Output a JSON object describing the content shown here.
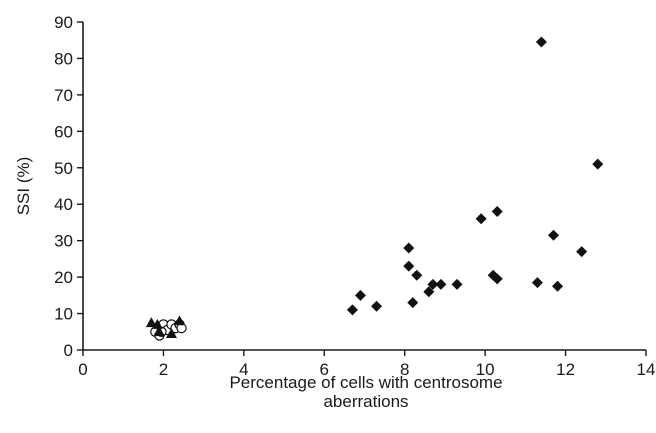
{
  "chart_data": {
    "type": "scatter",
    "title": "",
    "xlabel": "Percentage of cells with centrosome",
    "xlabel_line2": "aberrations",
    "ylabel": "SSI (%)",
    "xlim": [
      0,
      14
    ],
    "ylim": [
      0,
      90
    ],
    "xticks": [
      "0",
      "2",
      "4",
      "6",
      "8",
      "10",
      "12",
      "14"
    ],
    "yticks": [
      "0",
      "10",
      "20",
      "30",
      "40",
      "50",
      "60",
      "70",
      "80",
      "90"
    ],
    "grid": false,
    "legend": "none",
    "series": [
      {
        "marker": "diamond",
        "color": "#111111",
        "points": [
          {
            "x": 6.7,
            "y": 11
          },
          {
            "x": 6.9,
            "y": 15
          },
          {
            "x": 7.3,
            "y": 12
          },
          {
            "x": 8.1,
            "y": 28
          },
          {
            "x": 8.1,
            "y": 23
          },
          {
            "x": 8.3,
            "y": 20.5
          },
          {
            "x": 8.2,
            "y": 13
          },
          {
            "x": 8.6,
            "y": 16
          },
          {
            "x": 8.7,
            "y": 18
          },
          {
            "x": 8.9,
            "y": 18
          },
          {
            "x": 9.3,
            "y": 18
          },
          {
            "x": 9.9,
            "y": 36
          },
          {
            "x": 10.3,
            "y": 38
          },
          {
            "x": 10.2,
            "y": 20.5
          },
          {
            "x": 10.3,
            "y": 19.5
          },
          {
            "x": 11.3,
            "y": 18.5
          },
          {
            "x": 11.4,
            "y": 84.5
          },
          {
            "x": 11.7,
            "y": 31.5
          },
          {
            "x": 11.8,
            "y": 17.5
          },
          {
            "x": 12.4,
            "y": 27
          },
          {
            "x": 12.8,
            "y": 51
          }
        ]
      },
      {
        "marker": "circle-open",
        "color": "#111111",
        "points": [
          {
            "x": 1.8,
            "y": 5
          },
          {
            "x": 1.9,
            "y": 4
          },
          {
            "x": 2.0,
            "y": 7
          },
          {
            "x": 2.1,
            "y": 5.5
          },
          {
            "x": 2.2,
            "y": 7
          },
          {
            "x": 2.3,
            "y": 6
          },
          {
            "x": 2.4,
            "y": 7
          },
          {
            "x": 2.45,
            "y": 6
          },
          {
            "x": 1.95,
            "y": 5
          }
        ]
      },
      {
        "marker": "triangle",
        "color": "#111111",
        "points": [
          {
            "x": 1.7,
            "y": 7.5
          },
          {
            "x": 1.85,
            "y": 7
          },
          {
            "x": 1.9,
            "y": 5
          },
          {
            "x": 2.2,
            "y": 4.5
          },
          {
            "x": 2.4,
            "y": 8
          }
        ]
      }
    ]
  }
}
